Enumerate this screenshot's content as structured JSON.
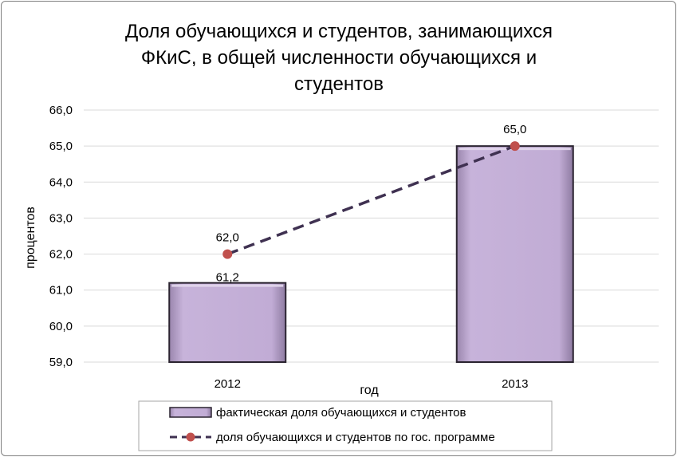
{
  "chart_data": {
    "type": "bar",
    "title_lines": [
      "Доля обучающихся и студентов, занимающихся",
      "ФКиС, в общей численности обучающихся и",
      "студентов"
    ],
    "xlabel": "год",
    "ylabel": "процентов",
    "categories": [
      "2012",
      "2013"
    ],
    "ylim": [
      59.0,
      66.0
    ],
    "yticks": [
      "59,0",
      "60,0",
      "61,0",
      "62,0",
      "63,0",
      "64,0",
      "65,0",
      "66,0"
    ],
    "grid": true,
    "legend_position": "bottom",
    "series": [
      {
        "name": "фактическая доля обучающихся и студентов",
        "kind": "bar",
        "values": [
          61.2,
          65.0
        ],
        "labels": [
          "61,2",
          ""
        ],
        "color": "#bfa8d3"
      },
      {
        "name": "доля обучающихся и студентов по гос. программе",
        "kind": "line",
        "style": "dashed",
        "values": [
          62.0,
          65.0
        ],
        "labels": [
          "62,0",
          "65,0"
        ],
        "line_color": "#3f3151",
        "marker_color": "#c0504d"
      }
    ]
  }
}
